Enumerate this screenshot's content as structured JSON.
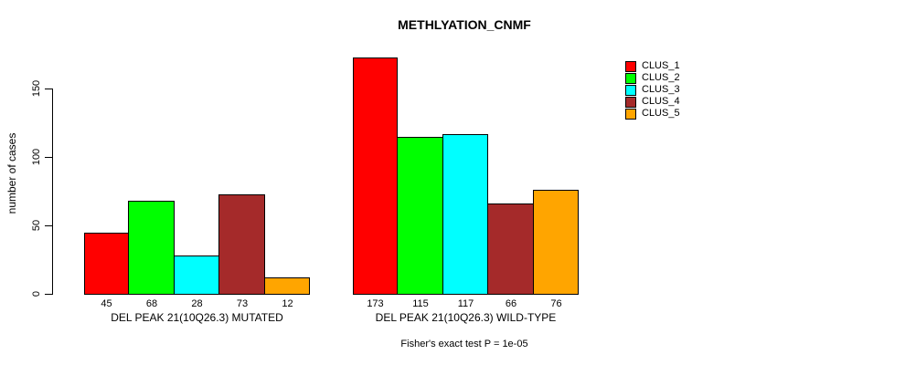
{
  "chart_data": {
    "type": "bar",
    "title": "METHLYATION_CNMF",
    "ylabel": "number of cases",
    "xlabel": "",
    "yticks": [
      0,
      50,
      100,
      150
    ],
    "ylim": [
      0,
      175
    ],
    "grid": false,
    "legend_position": "right",
    "series": [
      {
        "name": "CLUS_1",
        "color": "#FF0000"
      },
      {
        "name": "CLUS_2",
        "color": "#00FF00"
      },
      {
        "name": "CLUS_3",
        "color": "#00FFFF"
      },
      {
        "name": "CLUS_4",
        "color": "#A52A2A"
      },
      {
        "name": "CLUS_5",
        "color": "#FFA500"
      }
    ],
    "groups": [
      {
        "label": "DEL PEAK 21(10Q26.3) MUTATED",
        "values": [
          45,
          68,
          28,
          73,
          12
        ]
      },
      {
        "label": "DEL PEAK 21(10Q26.3) WILD-TYPE",
        "values": [
          173,
          115,
          117,
          66,
          76
        ]
      }
    ],
    "bar_value_labels_shown": true,
    "annotation": "Fisher's exact test P = 1e-05",
    "axis_color": "#000000",
    "bar_border_color": "#000000",
    "background_color": "#FFFFFF"
  }
}
